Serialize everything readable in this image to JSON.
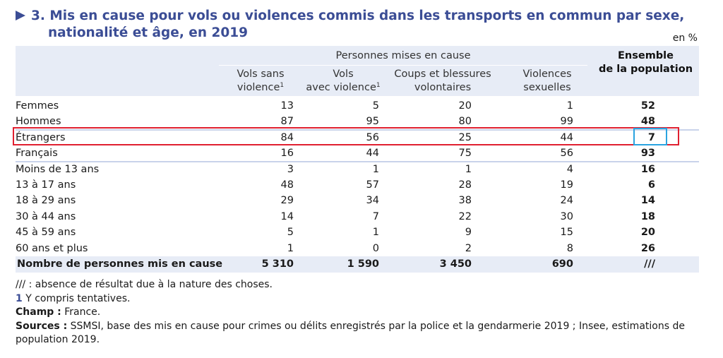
{
  "title": {
    "line1": "3. Mis en cause pour vols ou violences commis dans les transports en commun par sexe,",
    "line2": "nationalité et âge, en 2019"
  },
  "unit": "en %",
  "header": {
    "group": "Personnes mises en cause",
    "col1_line1": "Vols sans",
    "col1_line2": "violence",
    "col2_line1": "Vols",
    "col2_line2": "avec violence",
    "col3_line1": "Coups et blessures",
    "col3_line2": "volontaires",
    "col4_line1": "Violences",
    "col4_line2": "sexuelles",
    "total_line1": "Ensemble",
    "total_line2": "de la population",
    "footnote_mark": "1"
  },
  "rows": [
    {
      "label": "Femmes",
      "c1": "13",
      "c2": "5",
      "c3": "20",
      "c4": "1",
      "total": "52"
    },
    {
      "label": "Hommes",
      "c1": "87",
      "c2": "95",
      "c3": "80",
      "c4": "99",
      "total": "48"
    },
    {
      "label": "Étrangers",
      "c1": "84",
      "c2": "56",
      "c3": "25",
      "c4": "44",
      "total": "7"
    },
    {
      "label": "Français",
      "c1": "16",
      "c2": "44",
      "c3": "75",
      "c4": "56",
      "total": "93"
    },
    {
      "label": "Moins de 13 ans",
      "c1": "3",
      "c2": "1",
      "c3": "1",
      "c4": "4",
      "total": "16"
    },
    {
      "label": "13 à 17 ans",
      "c1": "48",
      "c2": "57",
      "c3": "28",
      "c4": "19",
      "total": "6"
    },
    {
      "label": "18 à 29 ans",
      "c1": "29",
      "c2": "34",
      "c3": "38",
      "c4": "24",
      "total": "14"
    },
    {
      "label": "30 à 44 ans",
      "c1": "14",
      "c2": "7",
      "c3": "22",
      "c4": "30",
      "total": "18"
    },
    {
      "label": "45 à 59 ans",
      "c1": "5",
      "c2": "1",
      "c3": "9",
      "c4": "15",
      "total": "20"
    },
    {
      "label": "60 ans et plus",
      "c1": "1",
      "c2": "0",
      "c3": "2",
      "c4": "8",
      "total": "26"
    }
  ],
  "total_row": {
    "label": "Nombre de personnes mis en cause",
    "c1": "5 310",
    "c2": "1 590",
    "c3": "3 450",
    "c4": "690",
    "total": "///"
  },
  "notes": {
    "absence": "/// : absence de résultat due à la nature des choses.",
    "fn_mark": "1",
    "fn_text": " Y compris tentatives.",
    "champ_label": "Champ :",
    "champ_text": " France.",
    "sources_label": "Sources :",
    "sources_text": " SSMSI, base des mis en cause pour crimes ou délits enregistrés par la police et la gendarmerie 2019 ; Insee, estimations de population 2019."
  },
  "colors": {
    "title": "#3b4d95",
    "header_band": "#e7ecf6",
    "highlight_row": "#e02030",
    "highlight_cell": "#2aa3e0"
  }
}
